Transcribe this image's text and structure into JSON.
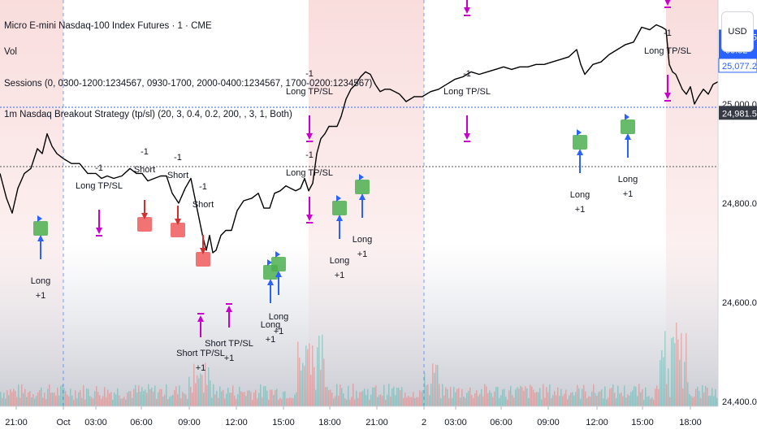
{
  "header": {
    "title": "Micro E-mini Nasdaq-100 Index Futures · 1 · CME",
    "indicators": [
      "Vol",
      "Sessions (0, 0300-1200:1234567, 0930-1700, 2000-0400:1234567, 1700-0200:1234567)",
      "1m Nasdaq Breakout Strategy (tp/sl) (20, 3, 0.4, 0.2, 200, , 3, 1, Both)"
    ]
  },
  "currency_button": "USD",
  "colors": {
    "price_line": "#000000",
    "long_badge": "#4caf50",
    "short_badge": "#f05a5a",
    "exit_arrow": "#cc00cc",
    "entry_arrow": "#2962ff",
    "session_shade": "#f8d7d7",
    "price_label": "#2962ff",
    "dark_label": "#363a45"
  },
  "chart_data": {
    "type": "line",
    "title": "Micro E-mini Nasdaq-100 Index Futures · 1 · CME",
    "x_ticks": [
      "21:00",
      "Oct",
      "03:00",
      "06:00",
      "09:00",
      "12:00",
      "15:00",
      "18:00",
      "21:00",
      "2",
      "03:00",
      "06:00",
      "09:00",
      "12:00",
      "15:00",
      "18:00"
    ],
    "y_ticks": [
      "24,400.00",
      "24,600.00",
      "24,800.00",
      "25,000.00"
    ],
    "ylim": [
      24390,
      25210
    ],
    "price_labels": [
      {
        "value": 25135.5,
        "text": "25,135.50",
        "sub": "00:52",
        "style": "filled"
      },
      {
        "value": 25077.25,
        "text": "25,077.25",
        "style": "outline"
      },
      {
        "value": 24981.5,
        "text": "24,981.50",
        "style": "dark"
      }
    ],
    "series": [
      {
        "x": [
          0,
          8,
          15,
          22,
          30,
          38,
          46,
          52,
          58,
          64,
          70,
          78,
          88,
          98,
          108,
          118,
          125,
          132,
          140,
          150,
          160,
          168,
          175,
          182,
          190,
          198,
          205,
          212,
          220,
          228,
          235,
          240,
          245,
          250,
          254,
          258,
          262,
          266,
          272,
          278,
          285,
          292,
          300,
          310,
          318,
          325,
          332,
          338,
          345,
          352,
          358,
          364,
          370,
          375,
          380,
          385,
          390,
          395,
          400,
          405,
          410,
          415,
          420,
          426,
          432,
          438,
          444,
          450,
          456,
          462,
          468,
          474,
          480,
          486,
          492,
          500,
          510,
          520,
          530,
          540,
          550,
          560,
          570,
          580,
          590,
          600,
          610,
          620,
          630,
          640,
          650,
          660,
          670,
          680,
          690,
          700,
          710,
          715,
          720,
          730,
          740,
          750,
          760,
          770,
          780,
          790,
          800,
          808,
          815,
          820,
          824,
          828,
          832,
          836,
          840,
          845,
          850,
          855,
          860,
          866,
          872,
          878,
          884
        ],
        "y": [
          24860,
          24810,
          24780,
          24830,
          24860,
          24870,
          24910,
          24900,
          24940,
          24915,
          24900,
          24890,
          24880,
          24880,
          24860,
          24860,
          24850,
          24855,
          24850,
          24855,
          24870,
          24860,
          24860,
          24845,
          24850,
          24855,
          24855,
          24820,
          24800,
          24830,
          24850,
          24810,
          24770,
          24730,
          24705,
          24735,
          24700,
          24705,
          24735,
          24745,
          24745,
          24785,
          24805,
          24810,
          24820,
          24790,
          24790,
          24820,
          24825,
          24835,
          24830,
          24825,
          24830,
          24850,
          24825,
          24840,
          24900,
          24930,
          24940,
          24955,
          24955,
          24955,
          24975,
          25010,
          25030,
          25040,
          25055,
          25065,
          25060,
          25040,
          25025,
          25030,
          25030,
          25025,
          25020,
          25005,
          25015,
          25015,
          25025,
          25030,
          25040,
          25050,
          25055,
          25065,
          25060,
          25065,
          25070,
          25075,
          25070,
          25075,
          25075,
          25080,
          25080,
          25085,
          25090,
          25095,
          25110,
          25080,
          25060,
          25080,
          25085,
          25100,
          25110,
          25120,
          25125,
          25155,
          25150,
          25160,
          25155,
          25150,
          25080,
          25065,
          25060,
          25045,
          25030,
          25020,
          25035,
          25000,
          25015,
          25030,
          25020,
          25040,
          25045
        ]
      }
    ],
    "annotations": [
      {
        "type": "long",
        "lines": [
          "Long",
          "+1"
        ],
        "badge_x": 50,
        "badge_y": 281
      },
      {
        "type": "exit",
        "lines": [
          "-1",
          "Long TP/SL"
        ],
        "arrow_x": 122,
        "arrow_y": 286
      },
      {
        "type": "short",
        "lines": [
          "-1",
          "Short"
        ],
        "badge_x": 178,
        "badge_y": 276
      },
      {
        "type": "short",
        "lines": [
          "-1",
          "Short"
        ],
        "badge_x": 219,
        "badge_y": 283
      },
      {
        "type": "short",
        "lines": [
          "-1",
          "Short"
        ],
        "badge_x": 250,
        "badge_y": 319
      },
      {
        "type": "exit",
        "lines": [
          "Short TP/SL",
          "+1"
        ],
        "arrow_x": 247,
        "arrow_y": 390
      },
      {
        "type": "exit",
        "lines": [
          "Short TP/SL",
          "+1"
        ],
        "arrow_x": 282,
        "arrow_y": 378
      },
      {
        "type": "long",
        "lines": [
          "Long",
          "+1"
        ],
        "badge_x": 333,
        "badge_y": 335
      },
      {
        "type": "long",
        "lines": [
          "Long",
          "+1"
        ],
        "badge_x": 343,
        "badge_y": 325
      },
      {
        "type": "exit",
        "lines": [
          "-1",
          "Long TP/SL"
        ],
        "arrow_x": 381,
        "arrow_y": 270
      },
      {
        "type": "exit",
        "lines": [
          "-1",
          "Long TP/SL"
        ],
        "arrow_x": 381,
        "arrow_y": 170
      },
      {
        "type": "long",
        "lines": [
          "Long",
          "+1"
        ],
        "badge_x": 418,
        "badge_y": 256
      },
      {
        "type": "long",
        "lines": [
          "Long",
          "+1"
        ],
        "badge_x": 446,
        "badge_y": 230
      },
      {
        "type": "exit",
        "lines": [
          "-1",
          "Long TP/SL"
        ],
        "arrow_x": 575,
        "arrow_y": 170
      },
      {
        "type": "exit",
        "lines": [
          "-1",
          "Long TP/SL"
        ],
        "arrow_x": 575,
        "arrow_y": 15
      },
      {
        "type": "long",
        "lines": [
          "Long",
          "+1"
        ],
        "badge_x": 714,
        "badge_y": 175
      },
      {
        "type": "long",
        "lines": [
          "Long",
          "+1"
        ],
        "badge_x": 773,
        "badge_y": 156
      },
      {
        "type": "exit",
        "lines": [
          "-1",
          "Long TP/SL"
        ],
        "arrow_x": 822,
        "arrow_y": 120
      },
      {
        "type": "exit",
        "lines": [
          "-1",
          "Long TP/SL"
        ],
        "arrow_x": 822,
        "arrow_y": 5
      }
    ]
  }
}
